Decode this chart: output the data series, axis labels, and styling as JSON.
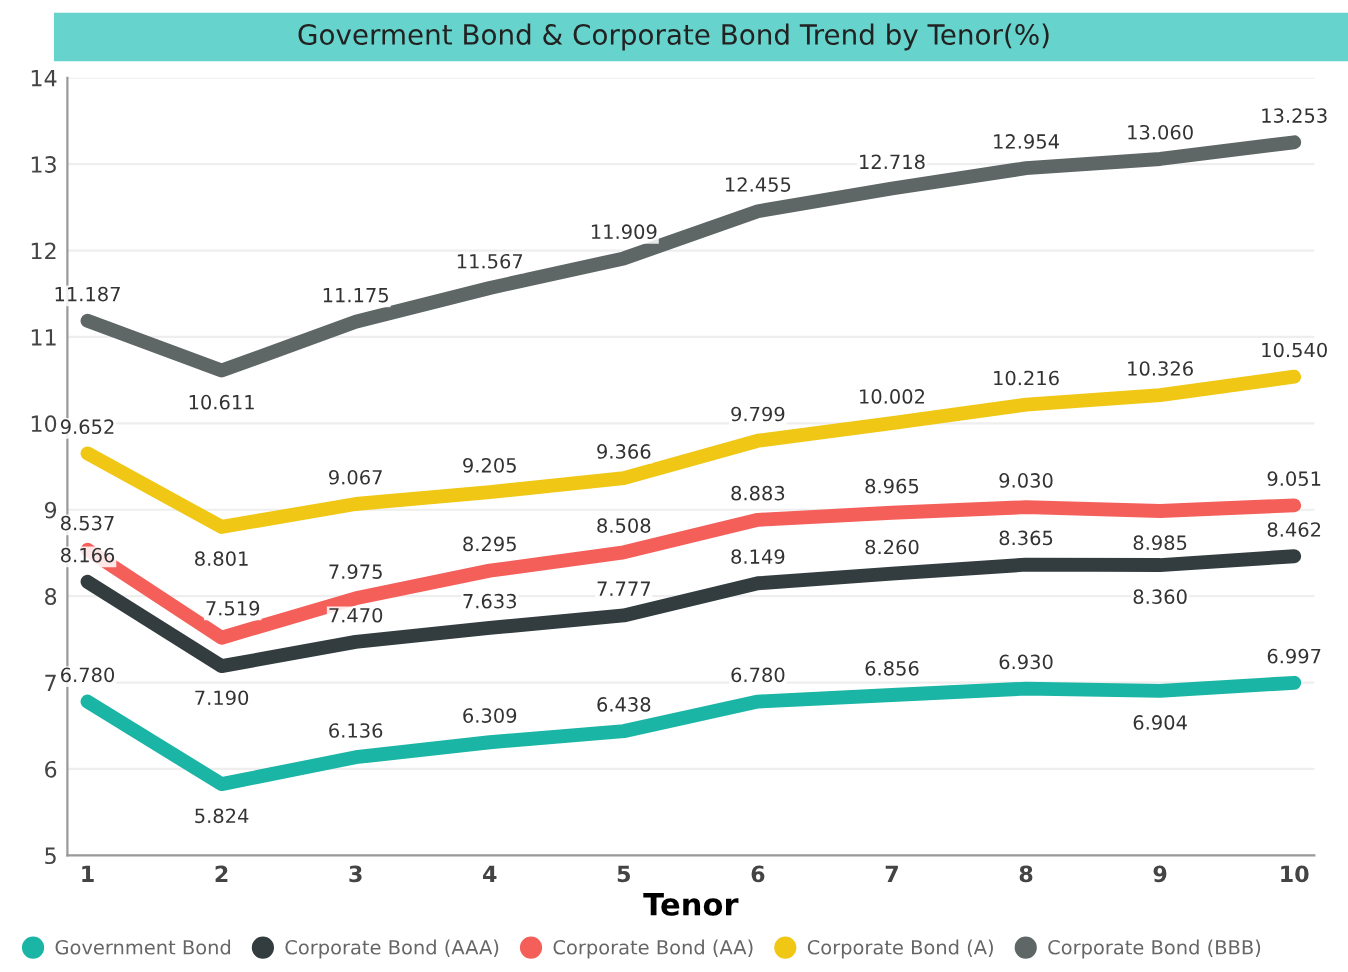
{
  "chart_data": {
    "type": "line",
    "title": "Goverment Bond & Corporate Bond Trend by Tenor(%)",
    "xlabel": "Tenor",
    "x": [
      1,
      2,
      3,
      4,
      5,
      6,
      7,
      8,
      9,
      10
    ],
    "xlim": [
      0.85,
      10.15
    ],
    "xticks": [
      1,
      2,
      3,
      4,
      5,
      6,
      7,
      8,
      9,
      10
    ],
    "ylim": [
      5,
      14
    ],
    "yticks": [
      5,
      6,
      7,
      8,
      9,
      10,
      11,
      12,
      13,
      14
    ],
    "grid": "y",
    "legend": "bottom",
    "series": [
      {
        "name": "Government Bond",
        "color": "#1ab5a5",
        "values": [
          6.78,
          5.824,
          6.136,
          6.309,
          6.438,
          6.78,
          6.856,
          6.93,
          6.904,
          6.997
        ],
        "value_labels": [
          "6.780",
          "5.824",
          "6.136",
          "6.309",
          "6.438",
          "6.780",
          "6.856",
          "6.930",
          "6.904",
          "6.997"
        ]
      },
      {
        "name": "Corporate Bond (AAA)",
        "color": "#333d40",
        "values": [
          8.166,
          7.19,
          7.47,
          7.633,
          7.777,
          8.149,
          8.26,
          8.365,
          8.36,
          8.462
        ],
        "value_labels": [
          "8.166",
          "7.190",
          "7.470",
          "7.633",
          "7.777",
          "8.149",
          "8.260",
          "8.365",
          "8.360",
          "8.462"
        ]
      },
      {
        "name": "Corporate Bond (AA)",
        "color": "#f45f5a",
        "values": [
          8.537,
          7.519,
          7.975,
          8.295,
          8.508,
          8.883,
          8.965,
          9.03,
          8.985,
          9.051
        ],
        "value_labels": [
          "8.537",
          "7.519",
          "7.975",
          "8.295",
          "8.508",
          "8.883",
          "8.965",
          "9.030",
          "8.985",
          "9.051"
        ]
      },
      {
        "name": "Corporate Bond (A)",
        "color": "#f0c714",
        "values": [
          9.652,
          8.801,
          9.067,
          9.205,
          9.366,
          9.799,
          10.002,
          10.216,
          10.326,
          10.54
        ],
        "value_labels": [
          "9.652",
          "8.801",
          "9.067",
          "9.205",
          "9.366",
          "9.799",
          "10.002",
          "10.216",
          "10.326",
          "10.540"
        ]
      },
      {
        "name": "Corporate Bond (BBB)",
        "color": "#5e6766",
        "values": [
          11.187,
          10.611,
          11.175,
          11.567,
          11.909,
          12.455,
          12.718,
          12.954,
          13.06,
          13.253
        ],
        "value_labels": [
          "11.187",
          "10.611",
          "11.175",
          "11.567",
          "11.909",
          "12.455",
          "12.718",
          "12.954",
          "13.060",
          "13.253"
        ]
      }
    ]
  }
}
